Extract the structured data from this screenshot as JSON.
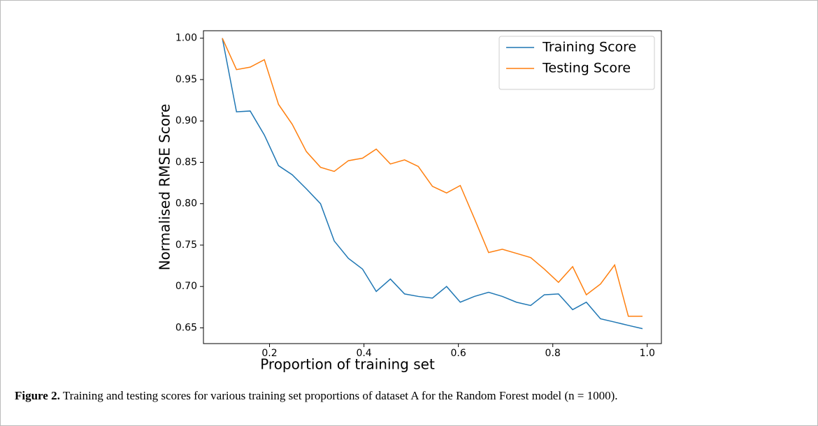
{
  "chart_data": {
    "type": "line",
    "xlabel": "Proportion of training set",
    "ylabel": "Normalised RMSE Score",
    "x": [
      0.1,
      0.13,
      0.159,
      0.189,
      0.219,
      0.248,
      0.278,
      0.308,
      0.337,
      0.367,
      0.397,
      0.426,
      0.456,
      0.486,
      0.515,
      0.545,
      0.575,
      0.604,
      0.634,
      0.664,
      0.693,
      0.723,
      0.753,
      0.782,
      0.812,
      0.842,
      0.871,
      0.901,
      0.931,
      0.96,
      0.99
    ],
    "series": [
      {
        "name": "Training Score",
        "color": "#1f77b4",
        "values": [
          1.0,
          0.911,
          0.912,
          0.883,
          0.846,
          0.835,
          0.818,
          0.8,
          0.755,
          0.734,
          0.721,
          0.694,
          0.709,
          0.691,
          0.688,
          0.686,
          0.7,
          0.681,
          0.688,
          0.693,
          0.688,
          0.681,
          0.677,
          0.69,
          0.691,
          0.672,
          0.681,
          0.661,
          0.657,
          0.653,
          0.649
        ]
      },
      {
        "name": "Testing Score",
        "color": "#ff7f0e",
        "values": [
          1.0,
          0.962,
          0.965,
          0.974,
          0.92,
          0.896,
          0.863,
          0.844,
          0.839,
          0.852,
          0.855,
          0.866,
          0.848,
          0.853,
          0.845,
          0.821,
          0.813,
          0.822,
          0.782,
          0.741,
          0.745,
          0.74,
          0.735,
          0.721,
          0.705,
          0.724,
          0.69,
          0.703,
          0.726,
          0.664,
          0.664
        ]
      }
    ],
    "xlim": [
      0.06,
      1.03
    ],
    "ylim": [
      0.631,
      1.009
    ],
    "xticks": [
      0.2,
      0.4,
      0.6,
      0.8,
      {
        "value": 1.0,
        "label": "1.0"
      }
    ],
    "yticks": [
      {
        "value": 0.65,
        "label": "0.65"
      },
      {
        "value": 0.7,
        "label": "0.70"
      },
      0.75,
      {
        "value": 0.8,
        "label": "0.80"
      },
      0.85,
      {
        "value": 0.9,
        "label": "0.90"
      },
      0.95,
      {
        "value": 1.0,
        "label": "1.00"
      }
    ],
    "legend": "upper right",
    "grid": false
  },
  "caption": {
    "label": "Figure 2.",
    "text": "Training and testing scores for various training set proportions of dataset A for the Random Forest model (n = 1000)."
  }
}
